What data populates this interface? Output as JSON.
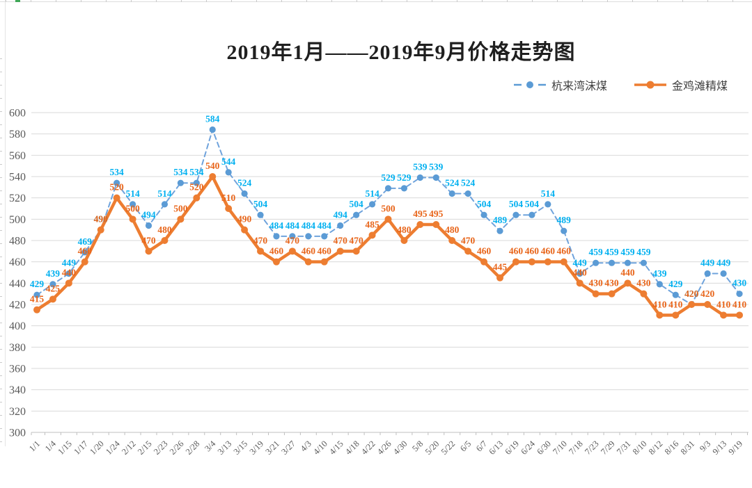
{
  "title": "2019年1月——2019年9月价格走势图",
  "legend": [
    {
      "label": "杭来湾沫煤"
    },
    {
      "label": "金鸡滩精煤"
    }
  ],
  "chart_data": {
    "type": "line",
    "title": "2019年1月——2019年9月价格走势图",
    "categories": [
      "1/1",
      "1/4",
      "1/15",
      "1/17",
      "1/20",
      "1/24",
      "2/12",
      "2/15",
      "2/23",
      "2/26",
      "2/28",
      "3/4",
      "3/13",
      "3/15",
      "3/19",
      "3/21",
      "3/27",
      "4/3",
      "4/10",
      "4/15",
      "4/18",
      "4/22",
      "4/26",
      "4/30",
      "5/8",
      "5/20",
      "5/22",
      "6/5",
      "6/7",
      "6/13",
      "6/19",
      "6/24",
      "6/30",
      "7/10",
      "7/18",
      "7/23",
      "7/29",
      "7/31",
      "8/10",
      "8/12",
      "8/16",
      "8/31",
      "9/3",
      "9/13",
      "9/19"
    ],
    "series": [
      {
        "name": "杭来湾沫煤",
        "style": "dashed",
        "color": "#5B9BD5",
        "line_color": "#6FA3DC",
        "label_color": "#00B0F0",
        "values": [
          429,
          439,
          449,
          469,
          490,
          534,
          514,
          494,
          514,
          534,
          534,
          584,
          544,
          524,
          504,
          484,
          484,
          484,
          484,
          494,
          504,
          514,
          529,
          529,
          539,
          539,
          524,
          524,
          504,
          489,
          504,
          504,
          514,
          489,
          449,
          459,
          459,
          459,
          459,
          439,
          429,
          420,
          449,
          449,
          430
        ]
      },
      {
        "name": "金鸡滩精煤",
        "style": "solid",
        "color": "#ED7D31",
        "line_color": "#ED7D31",
        "label_color": "#E8651A",
        "values": [
          415,
          425,
          440,
          460,
          490,
          520,
          500,
          470,
          480,
          500,
          520,
          540,
          510,
          490,
          470,
          460,
          470,
          460,
          460,
          470,
          470,
          485,
          500,
          480,
          495,
          495,
          480,
          470,
          460,
          445,
          460,
          460,
          460,
          460,
          440,
          430,
          430,
          440,
          430,
          410,
          410,
          420,
          420,
          410,
          410
        ]
      }
    ],
    "ylim": [
      300,
      600
    ],
    "ytick_step": 20,
    "grid": true,
    "grid_color": "#D9D9D9",
    "axis_color": "#BFBFBF",
    "tick_text_color": "#595959",
    "legend_position": "top-right",
    "data_labels": true
  }
}
